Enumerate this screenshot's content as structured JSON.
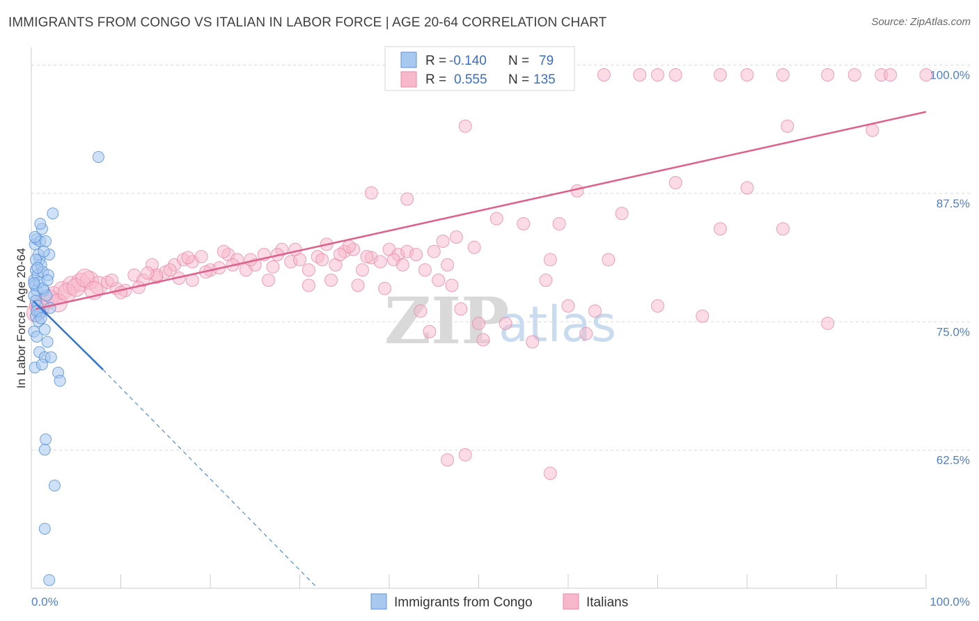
{
  "title": "IMMIGRANTS FROM CONGO VS ITALIAN IN LABOR FORCE | AGE 20-64 CORRELATION CHART",
  "source": "Source: ZipAtlas.com",
  "watermark": {
    "zip": "ZIP",
    "atlas": "atlas"
  },
  "legend": {
    "rows": [
      {
        "r_label": "R =",
        "r_value": "-0.140",
        "n_label": "N =",
        "n_value": "79"
      },
      {
        "r_label": "R =",
        "r_value": "0.555",
        "n_label": "N =",
        "n_value": "135"
      }
    ]
  },
  "bottom_legend": [
    "Immigrants from Congo",
    "Italians"
  ],
  "colors": {
    "congo_fill": "#a8c8f0",
    "congo_stroke": "#5b93d8",
    "congo_line": "#2f74d0",
    "italian_fill": "#f7b8cb",
    "italian_stroke": "#e88aa8",
    "italian_line": "#e0608c",
    "grid": "#d8d8d8",
    "axis_label": "#4f7fc8"
  },
  "chart_data": {
    "type": "scatter",
    "title": "IMMIGRANTS FROM CONGO VS ITALIAN IN LABOR FORCE | AGE 20-64 CORRELATION CHART",
    "xlabel": "",
    "ylabel": "In Labor Force | Age 20-64",
    "xlim": [
      0,
      100
    ],
    "ylim": [
      50,
      102
    ],
    "x_tick_labels": [
      "0.0%",
      "100.0%"
    ],
    "y_ticks": [
      62.5,
      75.0,
      87.5,
      100.0
    ],
    "y_tick_labels": [
      "62.5%",
      "75.0%",
      "87.5%",
      "100.0%"
    ],
    "grid": true,
    "legend_position": "top-center",
    "series": [
      {
        "name": "Immigrants from Congo",
        "r": -0.14,
        "n": 79,
        "trend": {
          "x0": 0.2,
          "y0": 78.0,
          "x1": 8.0,
          "y1": 71.3,
          "dash_x1": 32.0,
          "dash_y1": 50.0
        },
        "points": [
          [
            0.3,
            80.0
          ],
          [
            0.4,
            79.5
          ],
          [
            0.5,
            81.0
          ],
          [
            0.6,
            79.0
          ],
          [
            0.3,
            78.5
          ],
          [
            0.7,
            80.5
          ],
          [
            0.8,
            77.0
          ],
          [
            0.5,
            76.5
          ],
          [
            0.9,
            82.0
          ],
          [
            0.4,
            83.5
          ],
          [
            0.6,
            84.0
          ],
          [
            1.0,
            83.8
          ],
          [
            1.2,
            85.0
          ],
          [
            0.8,
            82.5
          ],
          [
            1.1,
            81.5
          ],
          [
            1.3,
            80.8
          ],
          [
            0.5,
            78.0
          ],
          [
            0.7,
            77.5
          ],
          [
            1.0,
            76.8
          ],
          [
            1.4,
            79.0
          ],
          [
            0.3,
            75.0
          ],
          [
            0.6,
            74.5
          ],
          [
            0.9,
            73.0
          ],
          [
            1.5,
            72.5
          ],
          [
            0.4,
            71.5
          ],
          [
            1.2,
            71.8
          ],
          [
            0.8,
            76.0
          ],
          [
            1.5,
            75.2
          ],
          [
            1.8,
            74.0
          ],
          [
            2.0,
            82.5
          ],
          [
            1.6,
            83.8
          ],
          [
            1.9,
            80.5
          ],
          [
            1.7,
            78.5
          ],
          [
            2.4,
            86.5
          ],
          [
            2.2,
            72.5
          ],
          [
            3.0,
            71.0
          ],
          [
            3.2,
            70.2
          ],
          [
            1.6,
            64.5
          ],
          [
            1.5,
            63.5
          ],
          [
            2.6,
            60.0
          ],
          [
            1.5,
            55.8
          ],
          [
            2.0,
            50.8
          ],
          [
            7.5,
            92.0
          ],
          [
            1.0,
            85.5
          ],
          [
            0.5,
            82.0
          ],
          [
            0.9,
            79.8
          ],
          [
            1.3,
            79.2
          ],
          [
            0.6,
            77.0
          ],
          [
            1.1,
            76.3
          ],
          [
            0.4,
            84.2
          ],
          [
            1.4,
            82.8
          ],
          [
            0.7,
            81.2
          ],
          [
            1.8,
            80.0
          ],
          [
            0.3,
            79.7
          ],
          [
            2.1,
            77.3
          ]
        ]
      },
      {
        "name": "Italians",
        "r": 0.555,
        "n": 135,
        "trend": {
          "x0": 0.5,
          "y0": 77.2,
          "x1": 100.0,
          "y1": 96.4
        },
        "points": [
          [
            0.8,
            77.5
          ],
          [
            1.5,
            78.0
          ],
          [
            2.5,
            78.5
          ],
          [
            3.5,
            79.0
          ],
          [
            4.5,
            79.5
          ],
          [
            5.5,
            79.8
          ],
          [
            6.5,
            80.0
          ],
          [
            7.5,
            79.5
          ],
          [
            8.5,
            79.8
          ],
          [
            9.5,
            79.2
          ],
          [
            10.5,
            79.0
          ],
          [
            11.5,
            80.5
          ],
          [
            12.5,
            80.0
          ],
          [
            13.5,
            81.5
          ],
          [
            14.0,
            80.3
          ],
          [
            15.0,
            80.8
          ],
          [
            16.0,
            81.5
          ],
          [
            17.0,
            82.0
          ],
          [
            18.0,
            81.8
          ],
          [
            19.0,
            82.3
          ],
          [
            20.0,
            81.0
          ],
          [
            21.0,
            81.2
          ],
          [
            22.0,
            82.5
          ],
          [
            23.0,
            82.0
          ],
          [
            24.0,
            81.0
          ],
          [
            25.0,
            81.5
          ],
          [
            26.0,
            82.5
          ],
          [
            27.0,
            81.3
          ],
          [
            28.0,
            83.0
          ],
          [
            29.0,
            81.8
          ],
          [
            30.0,
            82.0
          ],
          [
            31.0,
            81.0
          ],
          [
            32.0,
            82.3
          ],
          [
            33.0,
            83.5
          ],
          [
            34.0,
            81.5
          ],
          [
            35.0,
            82.8
          ],
          [
            36.0,
            83.0
          ],
          [
            37.0,
            81.0
          ],
          [
            38.0,
            82.2
          ],
          [
            39.0,
            81.8
          ],
          [
            40.0,
            83.0
          ],
          [
            41.0,
            82.5
          ],
          [
            42.0,
            82.8
          ],
          [
            43.0,
            82.5
          ],
          [
            44.0,
            81.0
          ],
          [
            45.0,
            82.8
          ],
          [
            46.0,
            83.8
          ],
          [
            47.0,
            79.5
          ],
          [
            18.0,
            80.0
          ],
          [
            14.0,
            80.5
          ],
          [
            16.5,
            80.2
          ],
          [
            26.5,
            80.0
          ],
          [
            31.0,
            79.5
          ],
          [
            33.5,
            80.0
          ],
          [
            36.5,
            79.5
          ],
          [
            39.5,
            79.2
          ],
          [
            43.5,
            77.0
          ],
          [
            44.5,
            75.0
          ],
          [
            45.5,
            80.0
          ],
          [
            46.5,
            81.5
          ],
          [
            47.5,
            84.2
          ],
          [
            48.0,
            77.2
          ],
          [
            49.5,
            83.2
          ],
          [
            50.0,
            75.8
          ],
          [
            50.5,
            74.2
          ],
          [
            52.0,
            86.0
          ],
          [
            53.0,
            75.8
          ],
          [
            55.0,
            85.5
          ],
          [
            56.0,
            74.0
          ],
          [
            57.5,
            80.0
          ],
          [
            58.0,
            82.0
          ],
          [
            59.0,
            85.5
          ],
          [
            60.0,
            77.5
          ],
          [
            61.0,
            88.7
          ],
          [
            62.0,
            74.8
          ],
          [
            63.0,
            77.0
          ],
          [
            64.5,
            82.0
          ],
          [
            66.0,
            86.5
          ],
          [
            70.0,
            77.5
          ],
          [
            72.0,
            89.5
          ],
          [
            75.0,
            76.5
          ],
          [
            77.0,
            85.0
          ],
          [
            80.0,
            89.0
          ],
          [
            84.0,
            85.0
          ],
          [
            84.5,
            95.0
          ],
          [
            89.0,
            75.8
          ],
          [
            94.0,
            94.6
          ],
          [
            48.5,
            95.0
          ],
          [
            38.0,
            88.5
          ],
          [
            42.0,
            87.9
          ],
          [
            55.0,
            100.0
          ],
          [
            60.0,
            100.0
          ],
          [
            64.0,
            100.0
          ],
          [
            68.0,
            100.0
          ],
          [
            70.0,
            100.0
          ],
          [
            72.0,
            100.0
          ],
          [
            77.0,
            100.0
          ],
          [
            80.0,
            100.0
          ],
          [
            84.0,
            100.0
          ],
          [
            89.0,
            100.0
          ],
          [
            92.0,
            100.0
          ],
          [
            95.0,
            100.0
          ],
          [
            96.0,
            100.0
          ],
          [
            100.0,
            100.0
          ],
          [
            46.5,
            62.5
          ],
          [
            48.5,
            63.0
          ],
          [
            58.0,
            61.2
          ],
          [
            2.0,
            78.2
          ],
          [
            3.0,
            77.8
          ],
          [
            4.0,
            78.8
          ],
          [
            5.0,
            79.3
          ],
          [
            6.0,
            80.2
          ],
          [
            7.0,
            79.0
          ],
          [
            9.0,
            80.0
          ],
          [
            10.0,
            78.8
          ],
          [
            12.0,
            79.3
          ],
          [
            13.0,
            80.7
          ],
          [
            15.5,
            81.0
          ],
          [
            17.5,
            82.2
          ],
          [
            19.5,
            80.8
          ],
          [
            21.5,
            82.8
          ],
          [
            22.5,
            81.5
          ],
          [
            24.5,
            82.0
          ],
          [
            27.5,
            82.5
          ],
          [
            29.5,
            83.0
          ],
          [
            32.5,
            82.0
          ],
          [
            34.5,
            82.5
          ],
          [
            35.5,
            83.3
          ],
          [
            37.5,
            82.3
          ],
          [
            40.5,
            82.0
          ],
          [
            41.5,
            81.5
          ],
          [
            0.5,
            76.8
          ],
          [
            1.0,
            77.3
          ]
        ]
      }
    ]
  }
}
